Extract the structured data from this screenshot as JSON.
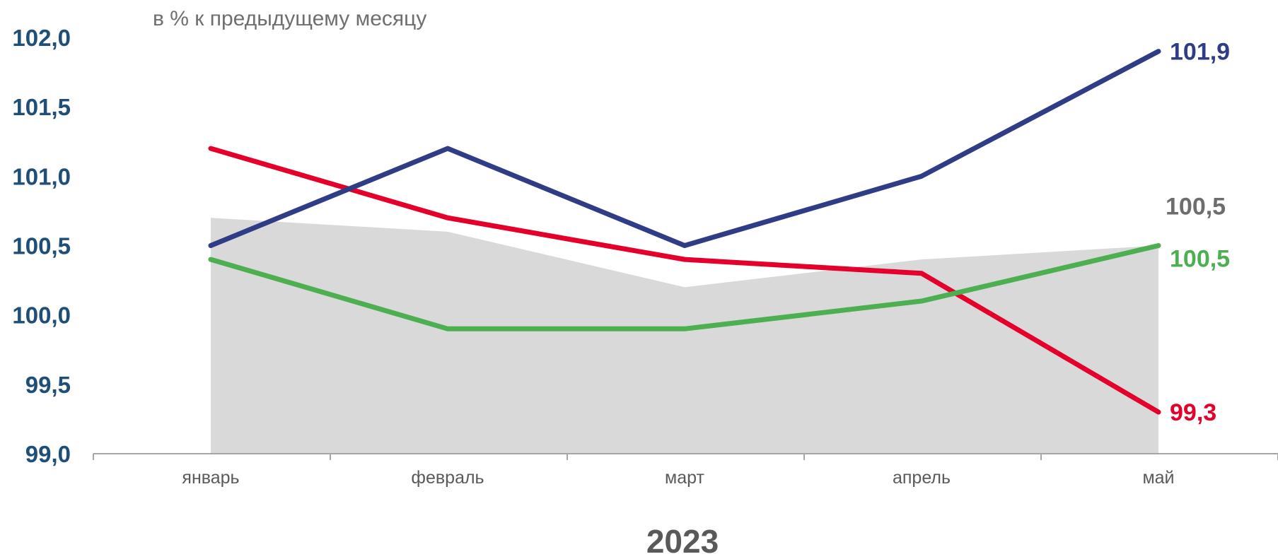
{
  "chart_data": {
    "type": "line",
    "subtitle": "в % к предыдущему месяцу",
    "xlabel": "2023",
    "categories": [
      "январь",
      "февраль",
      "март",
      "апрель",
      "май"
    ],
    "ylim": [
      99.0,
      102.0
    ],
    "yticks": [
      "99,0",
      "99,5",
      "100,0",
      "100,5",
      "101,0",
      "101,5",
      "102,0"
    ],
    "grid": false,
    "legend": "none",
    "area": {
      "values": [
        100.7,
        100.6,
        100.2,
        100.4,
        100.5
      ],
      "color": "#d9d9d9",
      "end_label": "100,5",
      "label_color": "#6d6d6d"
    },
    "series": [
      {
        "values": [
          101.2,
          100.7,
          100.4,
          100.3,
          99.3
        ],
        "color": "#e4002b",
        "end_label": "99,3"
      },
      {
        "values": [
          100.4,
          99.9,
          99.9,
          100.1,
          100.5
        ],
        "color": "#4caf50",
        "end_label": "100,5"
      },
      {
        "values": [
          100.5,
          101.2,
          100.5,
          101.0,
          101.9
        ],
        "color": "#2e3d86",
        "end_label": "101,9"
      }
    ]
  }
}
